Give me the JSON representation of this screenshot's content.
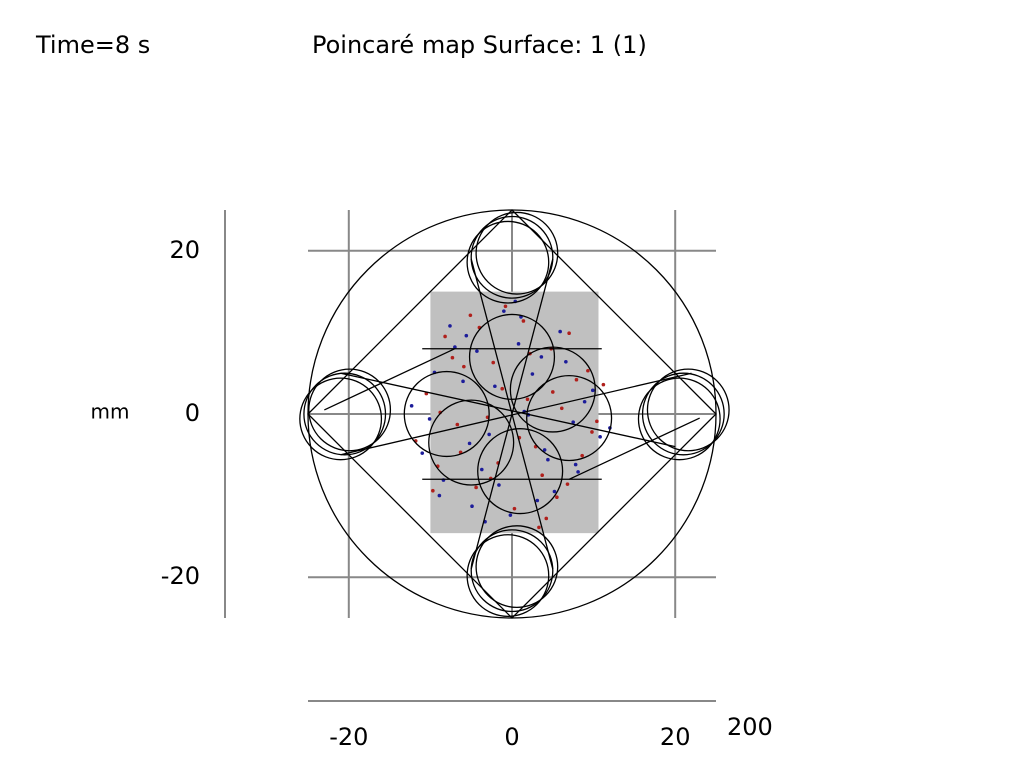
{
  "chart_data": {
    "type": "scatter",
    "time_label": "Time=8 s",
    "title": "Poincaré map  Surface: 1 (1)",
    "ylabel": "mm",
    "xlabel": "200",
    "xlim": [
      -25,
      25
    ],
    "ylim": [
      -25,
      25
    ],
    "xticks": [
      -20,
      0,
      20
    ],
    "yticks": [
      -20,
      0,
      20
    ],
    "grid": true,
    "series": [
      {
        "color": "#b0201c",
        "x": [
          -8.2,
          -5.1,
          -2.3,
          1.4,
          4.8,
          7.9,
          -10.5,
          -6.7,
          -1.2,
          2.9,
          6.1,
          9.8,
          -9.1,
          -4.4,
          0.3,
          3.7,
          8.6,
          -7.3,
          -3.0,
          1.9,
          5.5,
          11.2,
          -11.8,
          -5.9,
          -0.8,
          4.2,
          7.0,
          -2.6,
          2.2,
          -6.3,
          6.8,
          -8.8,
          9.3,
          -4.0,
          0.9,
          3.3,
          -1.7,
          5.0,
          -9.7,
          10.4
        ],
        "y": [
          9.5,
          12.1,
          6.3,
          11.4,
          8.0,
          4.2,
          2.5,
          -1.3,
          3.1,
          -4.0,
          0.7,
          -2.2,
          -6.4,
          -9.0,
          -11.6,
          -7.5,
          -5.1,
          6.9,
          -0.4,
          1.8,
          -10.2,
          3.6,
          -3.3,
          5.8,
          13.2,
          -12.8,
          9.9,
          -7.9,
          7.4,
          -4.7,
          -8.6,
          0.2,
          5.3,
          10.6,
          -2.9,
          -13.9,
          -6.0,
          2.7,
          -9.4,
          -0.9
        ]
      },
      {
        "color": "#1c1c9a",
        "x": [
          -7.6,
          -4.3,
          -1.0,
          2.5,
          5.9,
          8.9,
          -10.1,
          -6.0,
          -2.8,
          0.8,
          4.4,
          7.5,
          -8.4,
          -5.2,
          -0.2,
          3.1,
          9.9,
          -11.0,
          -3.7,
          1.5,
          6.6,
          10.8,
          -9.5,
          -4.9,
          -1.6,
          2.0,
          5.2,
          -7.0,
          0.4,
          -2.1,
          7.8,
          -12.3,
          12.0,
          -3.3,
          1.1,
          4.0,
          -5.6,
          8.1,
          -8.9,
          3.6
        ],
        "y": [
          10.8,
          7.7,
          12.6,
          4.9,
          10.1,
          1.5,
          -0.6,
          4.0,
          -2.5,
          8.6,
          -5.6,
          -1.0,
          -8.1,
          -3.6,
          -12.4,
          -10.6,
          2.9,
          -4.8,
          -6.8,
          0.3,
          6.4,
          -2.8,
          5.1,
          -11.3,
          -8.7,
          -0.1,
          -9.5,
          8.2,
          13.8,
          3.4,
          -6.2,
          1.0,
          -1.7,
          -13.2,
          11.9,
          -4.4,
          9.6,
          -7.1,
          -10.0,
          7.0
        ]
      }
    ]
  }
}
